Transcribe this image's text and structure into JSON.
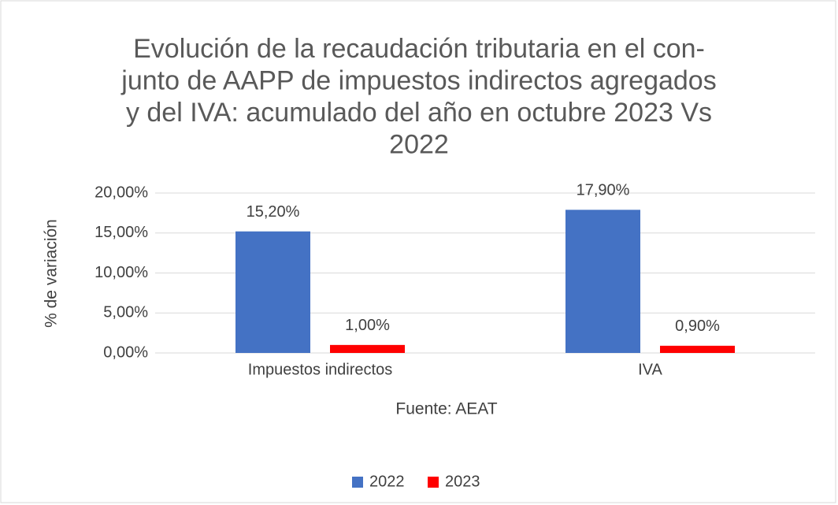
{
  "chart_data": {
    "type": "bar",
    "title": [
      "Evolución de la recaudación tributaria en  el con-",
      "junto de AAPP de impuestos indirectos agregados",
      "y del IVA: acumulado del año en octubre 2023 Vs",
      "2022"
    ],
    "x_label": "Fuente: AEAT",
    "y_label": "% de variación",
    "categories": [
      "Impuestos indirectos",
      "IVA"
    ],
    "series": [
      {
        "name": "2022",
        "color": "#4472c4",
        "values": [
          15.2,
          17.9
        ],
        "value_labels": [
          "15,20%",
          "17,90%"
        ]
      },
      {
        "name": "2023",
        "color": "#ff0000",
        "values": [
          1.0,
          0.9
        ],
        "value_labels": [
          "1,00%",
          "0,90%"
        ]
      }
    ],
    "ylim": [
      0,
      20
    ],
    "yticks": [
      {
        "value": 0,
        "label": "0,00%"
      },
      {
        "value": 5,
        "label": "5,00%"
      },
      {
        "value": 10,
        "label": "10,00%"
      },
      {
        "value": 15,
        "label": "15,00%"
      },
      {
        "value": 20,
        "label": "20,00%"
      }
    ],
    "grid": true,
    "legend": "bottom"
  }
}
